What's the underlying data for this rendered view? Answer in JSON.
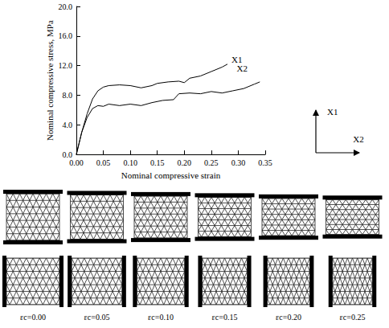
{
  "chart_data": {
    "type": "line",
    "xlabel": "Nominal compressive strain",
    "ylabel": "Nominal compressive stress, MPa",
    "xlim": [
      0,
      0.35
    ],
    "xticks": [
      {
        "value": 0,
        "label": "0.00"
      },
      {
        "value": 0.05,
        "label": "0.05"
      },
      {
        "value": 0.1,
        "label": "0.10"
      },
      {
        "value": 0.15,
        "label": "0.15"
      },
      {
        "value": 0.2,
        "label": "0.20"
      },
      {
        "value": 0.25,
        "label": "0.25"
      },
      {
        "value": 0.3,
        "label": "0.30"
      },
      {
        "value": 0.35,
        "label": "0.35"
      }
    ],
    "ylim": [
      0,
      20
    ],
    "yticks": [
      {
        "value": 0,
        "label": "0.0"
      },
      {
        "value": 4,
        "label": "4.0"
      },
      {
        "value": 8,
        "label": "8.0"
      },
      {
        "value": 12,
        "label": "12.0"
      },
      {
        "value": 16,
        "label": "16.0"
      },
      {
        "value": 20,
        "label": "20.0"
      }
    ],
    "grid": false,
    "series": [
      {
        "name": "X1",
        "color": "#000000",
        "x": [
          0,
          0.01,
          0.02,
          0.03,
          0.04,
          0.05,
          0.06,
          0.08,
          0.1,
          0.12,
          0.14,
          0.15,
          0.17,
          0.19,
          0.2,
          0.21,
          0.23,
          0.25,
          0.27,
          0.28
        ],
        "values": [
          0,
          3,
          5.5,
          7.5,
          8.6,
          9.1,
          9.3,
          9.4,
          9.3,
          9.0,
          9.3,
          9.6,
          9.8,
          9.9,
          9.7,
          10.3,
          10.6,
          11.2,
          11.8,
          12.2
        ]
      },
      {
        "name": "X2",
        "color": "#000000",
        "x": [
          0,
          0.01,
          0.02,
          0.03,
          0.04,
          0.05,
          0.06,
          0.08,
          0.1,
          0.12,
          0.14,
          0.16,
          0.18,
          0.19,
          0.21,
          0.23,
          0.25,
          0.27,
          0.29,
          0.31,
          0.33,
          0.34
        ],
        "values": [
          0,
          3,
          5,
          6.2,
          6.6,
          6.5,
          6.8,
          6.6,
          6.8,
          6.6,
          7.0,
          7.3,
          7.4,
          8.2,
          8.3,
          8.2,
          8.5,
          8.3,
          8.6,
          8.9,
          9.5,
          9.8
        ]
      }
    ]
  },
  "direction_key": {
    "up": "X1",
    "right": "X2"
  },
  "lattice_panels": {
    "strains": [
      0,
      0.05,
      0.1,
      0.15,
      0.2,
      0.25
    ],
    "labels": [
      "εc=0.00",
      "εc=0.05",
      "εc=0.10",
      "εc=0.15",
      "εc=0.20",
      "εc=0.25"
    ]
  }
}
